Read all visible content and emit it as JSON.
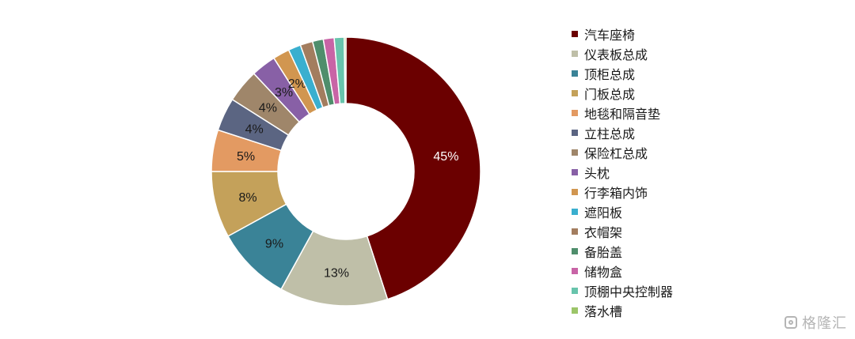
{
  "chart_data": {
    "type": "donut",
    "title": "",
    "categories": [
      "汽车座椅",
      "仪表板总成",
      "顶柜总成",
      "门板总成",
      "地毯和隔音垫",
      "立柱总成",
      "保险杠总成",
      "头枕",
      "行李箱内饰",
      "遮阳板",
      "衣帽架",
      "备胎盖",
      "储物盒",
      "顶棚中央控制器",
      "落水槽"
    ],
    "values": [
      45,
      13,
      9,
      8,
      5,
      4,
      4,
      3,
      2,
      1.5,
      1.5,
      1.3,
      1.3,
      1.2,
      0.2
    ],
    "data_labels": [
      "45%",
      "13%",
      "9%",
      "8%",
      "5%",
      "4%",
      "4%",
      "3%",
      "2%",
      "",
      "",
      "",
      "",
      "",
      ""
    ],
    "colors": [
      "#6b0000",
      "#bfbfa8",
      "#3a8397",
      "#c4a15a",
      "#e39a62",
      "#5b6582",
      "#9f866a",
      "#8860a6",
      "#d19650",
      "#3aafcf",
      "#a37d5f",
      "#4f8e6c",
      "#c864a6",
      "#68c4ac",
      "#9cc569"
    ],
    "legend_position": "right"
  },
  "watermark": {
    "icon": "gelonghui-logo-icon",
    "text": "格隆汇"
  }
}
